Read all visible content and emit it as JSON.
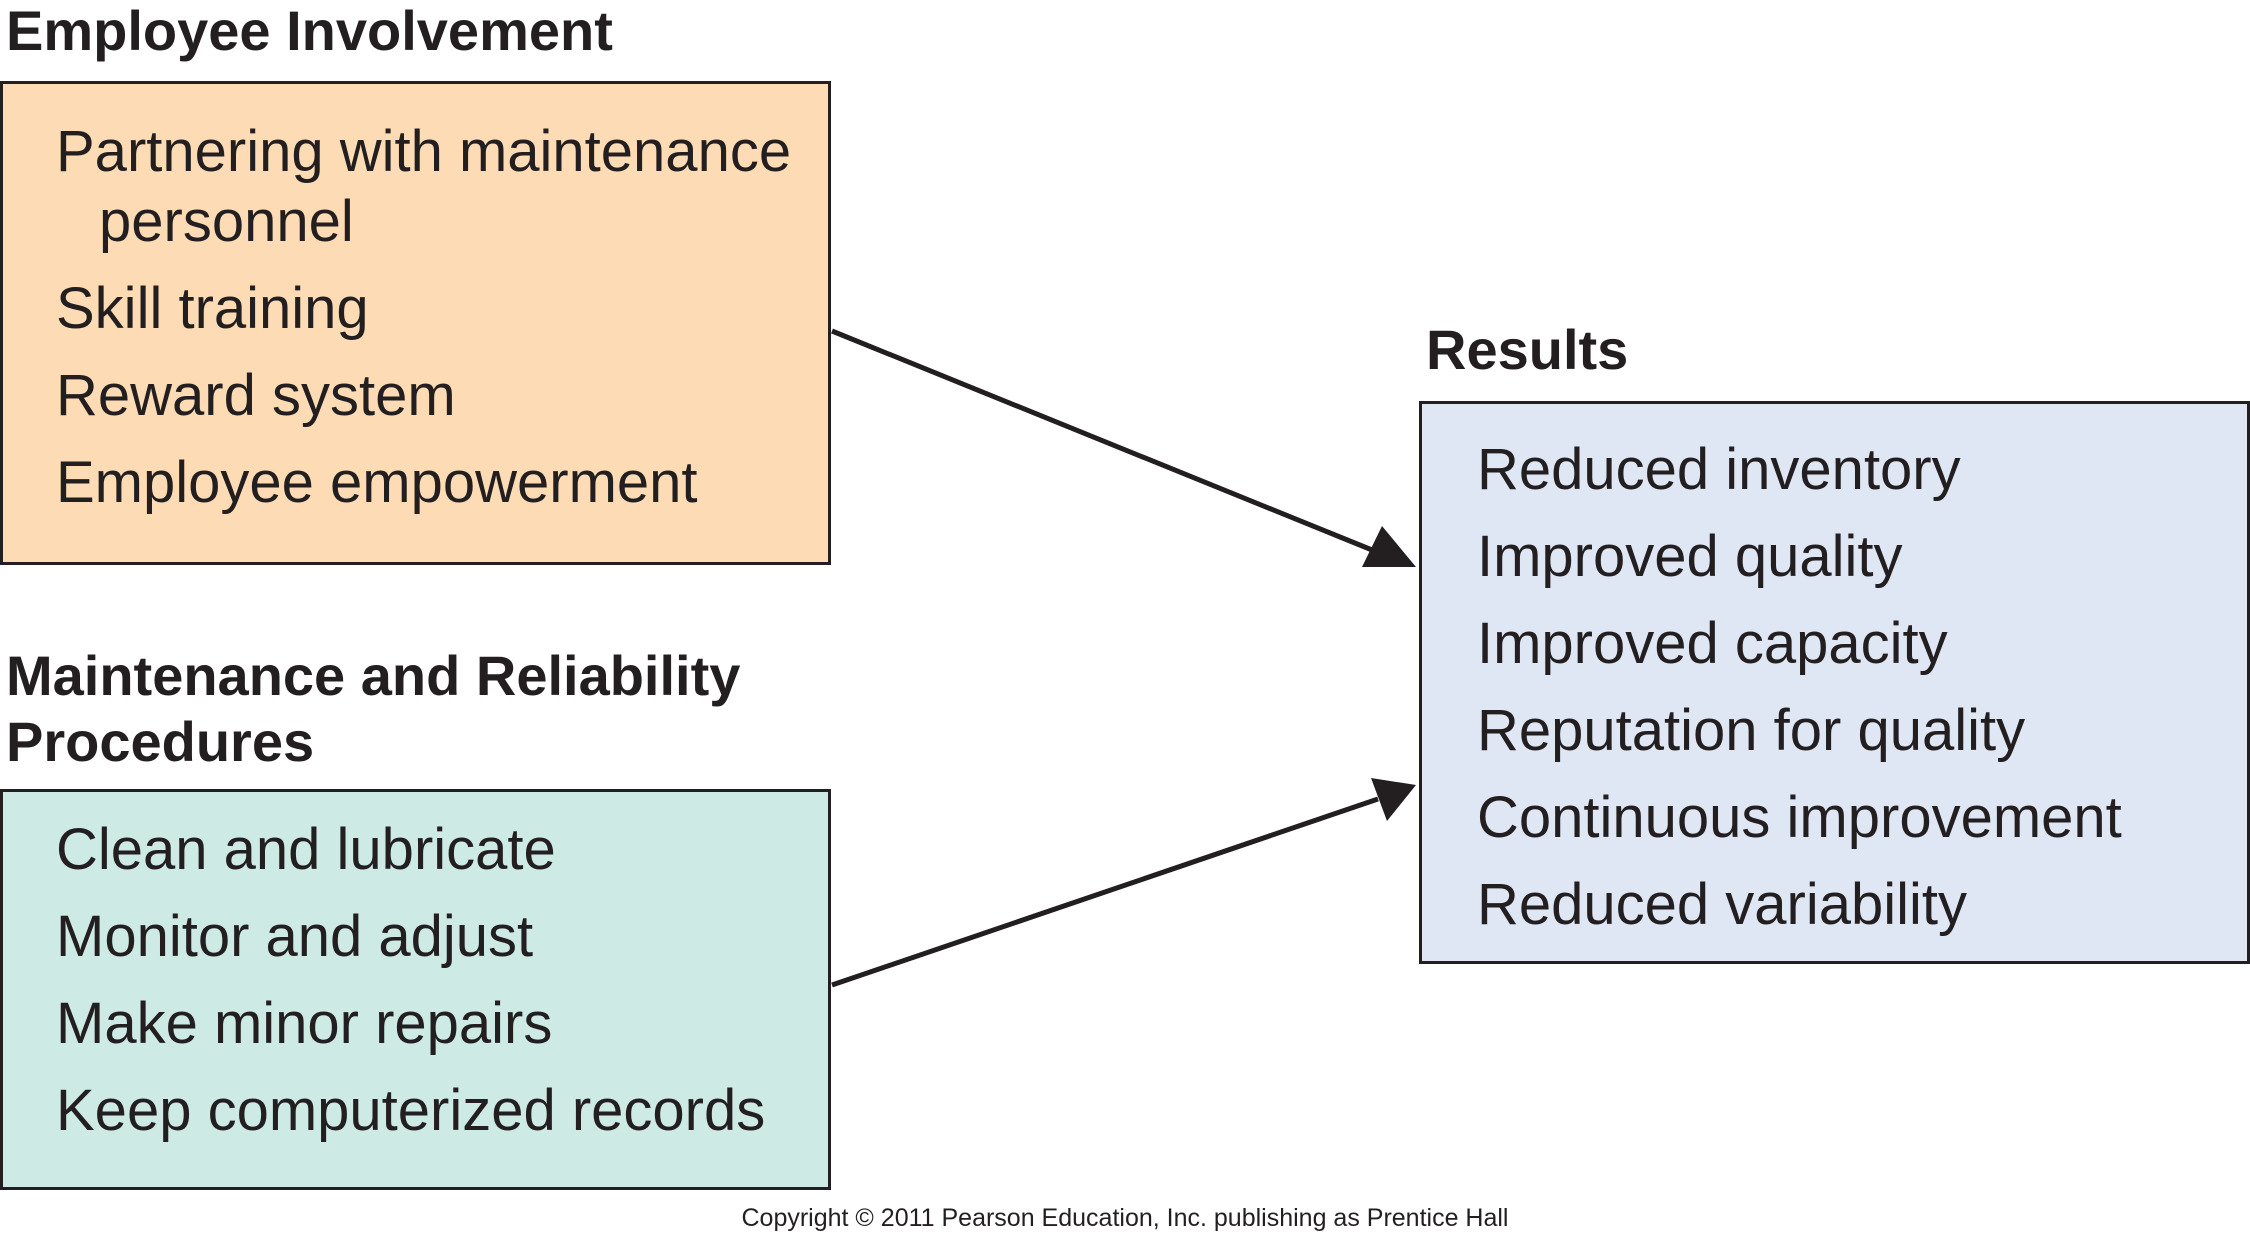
{
  "employee_involvement": {
    "title": "Employee Involvement",
    "items": [
      "Partnering with maintenance personnel",
      "Skill training",
      "Reward system",
      "Employee empowerment"
    ],
    "fill_color": "#fddcb5"
  },
  "maintenance_procedures": {
    "title_line1": "Maintenance and Reliability",
    "title_line2": "Procedures",
    "items": [
      "Clean and lubricate",
      "Monitor and adjust",
      "Make minor repairs",
      "Keep computerized records"
    ],
    "fill_color": "#cdeae4"
  },
  "results": {
    "title": "Results",
    "items": [
      "Reduced inventory",
      "Improved quality",
      "Improved capacity",
      "Reputation for quality",
      "Continuous improvement",
      "Reduced variability"
    ],
    "fill_color": "#dfe6f4"
  },
  "copyright": "Copyright © 2011 Pearson Education, Inc. publishing as Prentice Hall"
}
